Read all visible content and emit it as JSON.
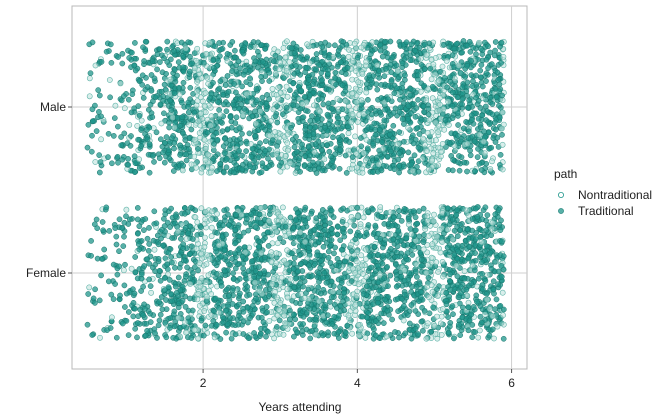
{
  "chart_data": {
    "type": "scatter",
    "title": "",
    "xlabel": "Years attending",
    "ylabel": "",
    "xlim": [
      0.3,
      6.2
    ],
    "x_ticks": [
      2,
      4,
      6
    ],
    "x_tick_labels": [
      "2",
      "4",
      "6"
    ],
    "categories": [
      "Female",
      "Male"
    ],
    "jitter": "vertical and horizontal jitter within each category band",
    "grid": true,
    "legend": {
      "title": "path",
      "position": "right",
      "entries": [
        "Nontraditional",
        "Traditional"
      ]
    },
    "series": [
      {
        "name": "Nontraditional",
        "style": "hollow",
        "color": "#1f968b",
        "x_range": [
          0.5,
          5.9
        ],
        "groups": [
          "Female",
          "Male"
        ]
      },
      {
        "name": "Traditional",
        "style": "filled",
        "color": "#1f968b",
        "x_range": [
          0.5,
          5.9
        ],
        "groups": [
          "Female",
          "Male"
        ]
      }
    ]
  }
}
